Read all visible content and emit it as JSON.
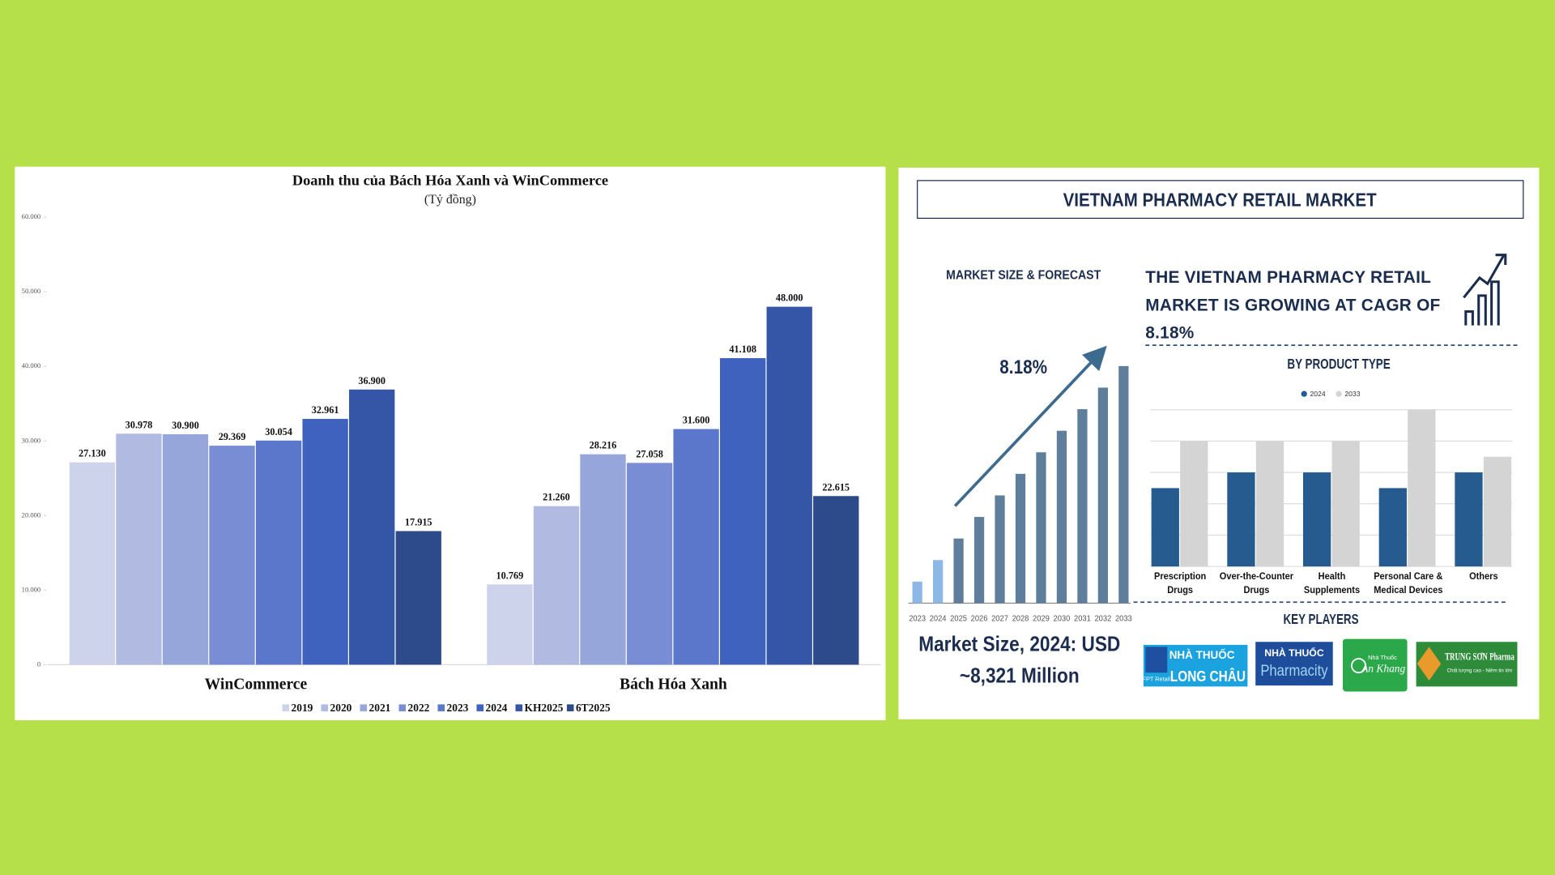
{
  "chart_data": [
    {
      "type": "bar",
      "title": "Doanh thu của Bách Hóa Xanh và WinCommerce",
      "subtitle": "(Tỷ đồng)",
      "categories": [
        "WinCommerce",
        "Bách Hóa Xanh"
      ],
      "series": [
        {
          "name": "2019",
          "color": "#cdd3ea",
          "values": [
            27130,
            10769
          ],
          "value_labels": [
            "27.130",
            "10.769"
          ]
        },
        {
          "name": "2020",
          "color": "#b1bbe2",
          "values": [
            30978,
            21260
          ],
          "value_labels": [
            "30.978",
            "21.260"
          ]
        },
        {
          "name": "2021",
          "color": "#96a5da",
          "values": [
            30900,
            28216
          ],
          "value_labels": [
            "30.900",
            "28.216"
          ]
        },
        {
          "name": "2022",
          "color": "#788dd3",
          "values": [
            29369,
            27058
          ],
          "value_labels": [
            "29.369",
            "27.058"
          ]
        },
        {
          "name": "2023",
          "color": "#5a77cc",
          "values": [
            30054,
            31600
          ],
          "value_labels": [
            "30.054",
            "31.600"
          ]
        },
        {
          "name": "2024",
          "color": "#3f62bf",
          "values": [
            32961,
            41108
          ],
          "value_labels": [
            "32.961",
            "41.108"
          ]
        },
        {
          "name": "KH2025",
          "color": "#3555a7",
          "values": [
            36900,
            48000
          ],
          "value_labels": [
            "36.900",
            "48.000"
          ]
        },
        {
          "name": "6T2025",
          "color": "#2d4a8a",
          "values": [
            17915,
            22615
          ],
          "value_labels": [
            "17.915",
            "22.615"
          ]
        }
      ],
      "ylim": [
        0,
        60000
      ],
      "yticks": [
        0,
        {
          "value": 10000,
          "label": "10.000"
        },
        {
          "value": 20000,
          "label": "20.000"
        },
        {
          "value": 30000,
          "label": "30.000"
        },
        {
          "value": 40000,
          "label": "40.000"
        },
        {
          "value": 50000,
          "label": "50.000"
        },
        {
          "value": 60000,
          "label": "60.000"
        }
      ],
      "grid": false,
      "legend": "bottom"
    },
    {
      "type": "bar",
      "title": "MARKET SIZE & FORECAST",
      "x": [
        2023,
        2024,
        2025,
        2026,
        2027,
        2028,
        2029,
        2030,
        2031,
        2032,
        2033
      ],
      "values": [
        1,
        2,
        3,
        4,
        5,
        6,
        7,
        8,
        9,
        10,
        11
      ],
      "colors": [
        "#8db8e6",
        "#8db8e6",
        "#5e7e9c",
        "#5e7e9c",
        "#5e7e9c",
        "#5e7e9c",
        "#5e7e9c",
        "#5e7e9c",
        "#5e7e9c",
        "#5e7e9c",
        "#5e7e9c"
      ],
      "annotations": [
        "8.18%",
        "Market Size, 2024: USD ~8,321 Million"
      ]
    },
    {
      "type": "bar",
      "title": "BY PRODUCT TYPE",
      "categories": [
        "Prescription Drugs",
        "Over-the-Counter Drugs",
        "Health Supplements",
        "Personal Care & Medical Devices",
        "Others"
      ],
      "series": [
        {
          "name": "2024",
          "color": "#265b8f",
          "values": [
            2.5,
            3,
            3,
            2.5,
            3
          ]
        },
        {
          "name": "2033",
          "color": "#d4d4d4",
          "values": [
            4,
            4,
            4,
            5,
            3.5
          ]
        }
      ],
      "ylim": [
        0,
        5
      ],
      "yticks": [
        0,
        1,
        2,
        3,
        4,
        5
      ],
      "grid": true,
      "legend": "top"
    }
  ],
  "infographic": {
    "title": "VIETNAM PHARMACY RETAIL MARKET",
    "headline": "THE VIETNAM PHARMACY RETAIL MARKET IS GROWING AT CAGR OF 8.18%",
    "key_players_title": "KEY PLAYERS",
    "key_players": [
      {
        "label": "NHÀ THUỐC",
        "name": "LONG CHÂU",
        "brand": "FPT Retail"
      },
      {
        "label": "NHÀ THUỐC",
        "name": "Pharmacity"
      },
      {
        "label": "Nhà Thuốc",
        "name": "An Khang"
      },
      {
        "name": "TRUNG SƠN Pharma",
        "slogan": "Chất lượng cao - Niềm tin lớn"
      }
    ]
  }
}
